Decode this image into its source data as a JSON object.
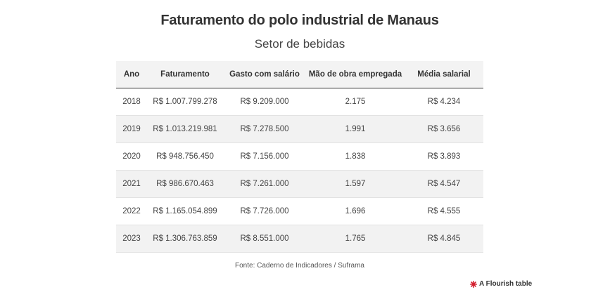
{
  "header": {
    "title": "Faturamento do polo industrial de Manaus",
    "subtitle": "Setor de bebidas"
  },
  "table": {
    "columns": [
      "Ano",
      "Faturamento",
      "Gasto com salário",
      "Mão de obra empregada",
      "Média salarial"
    ],
    "rows": [
      [
        "2018",
        "R$ 1.007.799.278",
        "R$ 9.209.000",
        "2.175",
        "R$ 4.234"
      ],
      [
        "2019",
        "R$ 1.013.219.981",
        "R$ 7.278.500",
        "1.991",
        "R$ 3.656"
      ],
      [
        "2020",
        "R$ 948.756.450",
        "R$ 7.156.000",
        "1.838",
        "R$ 3.893"
      ],
      [
        "2021",
        "R$ 986.670.463",
        "R$ 7.261.000",
        "1.597",
        "R$ 4.547"
      ],
      [
        "2022",
        "R$ 1.165.054.899",
        "R$ 7.726.000",
        "1.696",
        "R$ 4.555"
      ],
      [
        "2023",
        "R$ 1.306.763.859",
        "R$ 8.551.000",
        "1.765",
        "R$ 4.845"
      ]
    ]
  },
  "footer": {
    "source": "Fonte: Caderno de Indicadores / Suframa",
    "branding": "A Flourish table",
    "branding_icon": "flourish-logo-icon",
    "branding_color": "#d3202f"
  }
}
